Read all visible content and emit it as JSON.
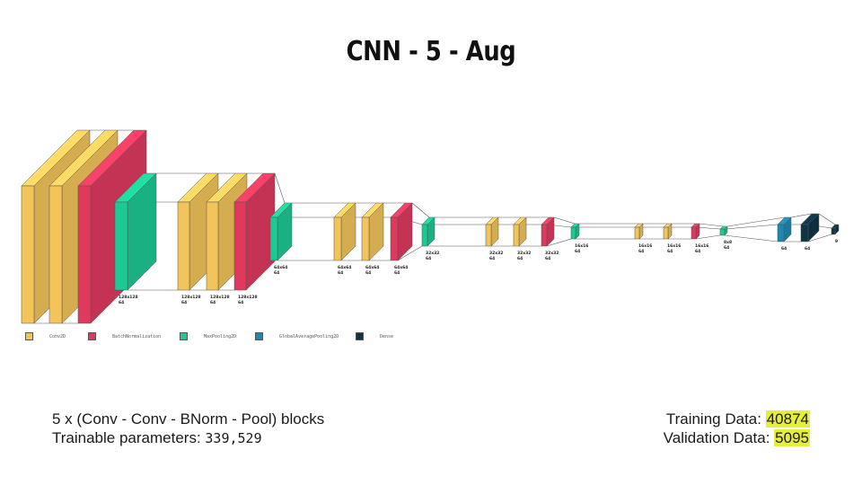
{
  "title": "CNN - 5 - Aug",
  "colors": {
    "Conv2D": "#f2c45a",
    "BatchNormalization": "#df3a5e",
    "MaxPooling2D": "#1cc994",
    "GlobalAveragePooling2D": "#1f87b0",
    "Dense": "#0e3446"
  },
  "legend": [
    {
      "type": "Conv2D",
      "label": "Conv2D"
    },
    {
      "type": "BatchNormalization",
      "label": "BatchNormalization"
    },
    {
      "type": "MaxPooling2D",
      "label": "MaxPooling2D"
    },
    {
      "type": "GlobalAveragePooling2D",
      "label": "GlobalAveragePooling2D"
    },
    {
      "type": "Dense",
      "label": "Dense"
    }
  ],
  "layers": [
    {
      "type": "Conv2D",
      "size": "",
      "depth": ""
    },
    {
      "type": "Conv2D",
      "size": "",
      "depth": ""
    },
    {
      "type": "BatchNormalization",
      "size": "",
      "depth": ""
    },
    {
      "type": "MaxPooling2D",
      "size": "128x128",
      "depth": "64"
    },
    {
      "type": "Conv2D",
      "size": "128x128",
      "depth": "64"
    },
    {
      "type": "Conv2D",
      "size": "128x128",
      "depth": "64"
    },
    {
      "type": "BatchNormalization",
      "size": "128x128",
      "depth": "64"
    },
    {
      "type": "MaxPooling2D",
      "size": "64x64",
      "depth": "64"
    },
    {
      "type": "Conv2D",
      "size": "64x64",
      "depth": "64"
    },
    {
      "type": "Conv2D",
      "size": "64x64",
      "depth": "64"
    },
    {
      "type": "BatchNormalization",
      "size": "64x64",
      "depth": "64"
    },
    {
      "type": "MaxPooling2D",
      "size": "32x32",
      "depth": "64"
    },
    {
      "type": "Conv2D",
      "size": "32x32",
      "depth": "64"
    },
    {
      "type": "Conv2D",
      "size": "32x32",
      "depth": "64"
    },
    {
      "type": "BatchNormalization",
      "size": "32x32",
      "depth": "64"
    },
    {
      "type": "MaxPooling2D",
      "size": "16x16",
      "depth": "64"
    },
    {
      "type": "Conv2D",
      "size": "16x16",
      "depth": "64"
    },
    {
      "type": "Conv2D",
      "size": "16x16",
      "depth": "64"
    },
    {
      "type": "BatchNormalization",
      "size": "16x16",
      "depth": "64"
    },
    {
      "type": "MaxPooling2D",
      "size": "8x8",
      "depth": "64"
    },
    {
      "type": "GlobalAveragePooling2D",
      "size": "64",
      "depth": ""
    },
    {
      "type": "Dense",
      "size": "64",
      "depth": ""
    },
    {
      "type": "Dense",
      "size": "9",
      "depth": ""
    }
  ],
  "info": {
    "blocks": "5 x (Conv - Conv - BNorm - Pool) blocks",
    "params_label": "Trainable parameters:",
    "params_value": "339,529",
    "training_label": "Training Data:",
    "training_value": "40874",
    "validation_label": "Validation Data:",
    "validation_value": "5095"
  }
}
